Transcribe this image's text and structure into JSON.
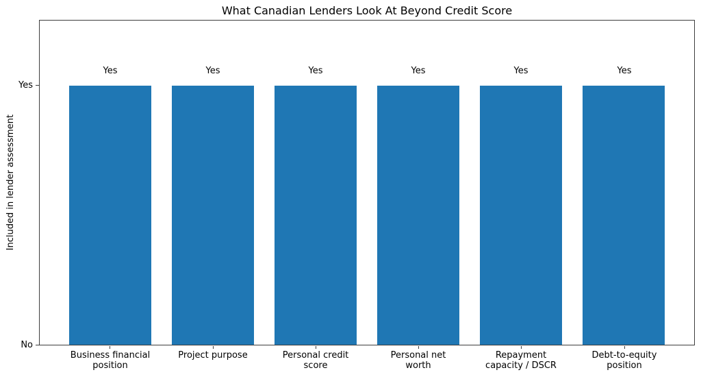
{
  "chart_data": {
    "type": "bar",
    "title": "What Canadian Lenders Look At Beyond Credit Score",
    "xlabel": "",
    "ylabel": "Included in lender assessment",
    "categories": [
      "Business financial\nposition",
      "Project purpose",
      "Personal credit\nscore",
      "Personal net\nworth",
      "Repayment\ncapacity / DSCR",
      "Debt-to-equity\nposition"
    ],
    "values": [
      1,
      1,
      1,
      1,
      1,
      1
    ],
    "value_labels": [
      "Yes",
      "Yes",
      "Yes",
      "Yes",
      "Yes",
      "Yes"
    ],
    "yticks": [
      {
        "pos": 0,
        "label": "No"
      },
      {
        "pos": 1,
        "label": "Yes"
      }
    ],
    "ylim": [
      0,
      1.25
    ],
    "bar_color": "#1f77b4",
    "grid": false,
    "legend_position": "none"
  }
}
